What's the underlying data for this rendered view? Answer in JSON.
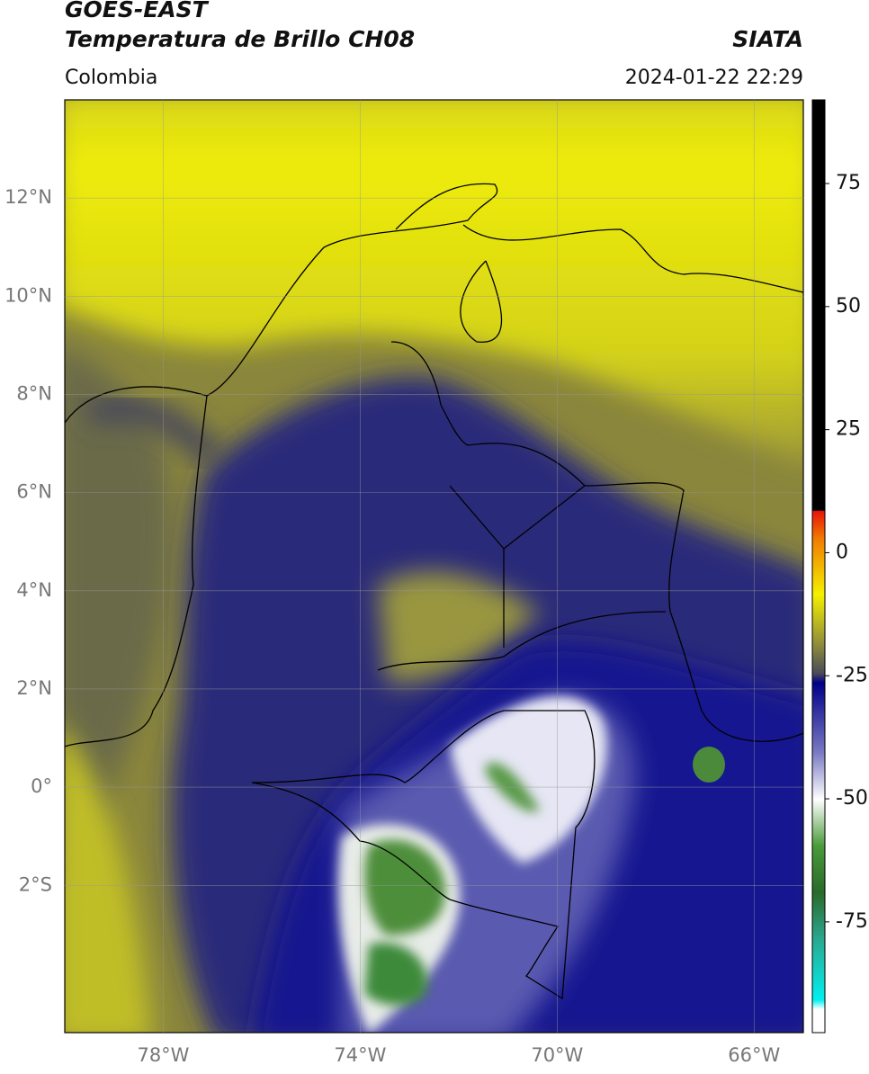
{
  "header": {
    "satellite": "GOES-EAST",
    "product": "Temperatura de Brillo CH08",
    "region": "Colombia",
    "source": "SIATA",
    "datetime": "2024-01-22 22:29"
  },
  "map": {
    "lonlim": [
      -80,
      -65
    ],
    "latlim": [
      -5,
      14
    ],
    "lon_ticks": [
      {
        "value": -78,
        "label": "78°W"
      },
      {
        "value": -74,
        "label": "74°W"
      },
      {
        "value": -70,
        "label": "70°W"
      },
      {
        "value": -66,
        "label": "66°W"
      }
    ],
    "lat_ticks": [
      {
        "value": 12,
        "label": "12°N"
      },
      {
        "value": 10,
        "label": "10°N"
      },
      {
        "value": 8,
        "label": "8°N"
      },
      {
        "value": 6,
        "label": "6°N"
      },
      {
        "value": 4,
        "label": "4°N"
      },
      {
        "value": 2,
        "label": "2°N"
      },
      {
        "value": 0,
        "label": "0°"
      },
      {
        "value": -2,
        "label": "2°S"
      }
    ]
  },
  "colorbar": {
    "lim": [
      -97.5,
      92
    ],
    "ticks": [
      75,
      50,
      25,
      0,
      -25,
      -50,
      -75
    ]
  }
}
